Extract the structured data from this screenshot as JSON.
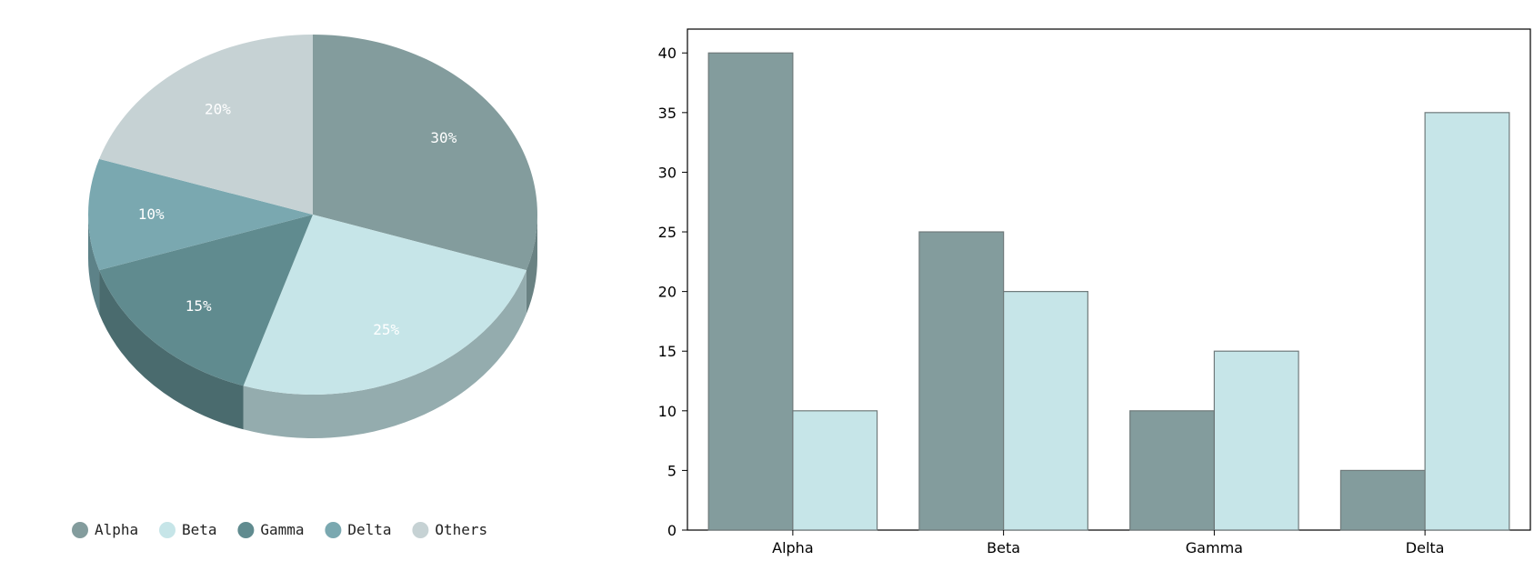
{
  "chart_data": [
    {
      "type": "pie",
      "title": "",
      "style": "3d",
      "legend_position": "bottom",
      "slices": [
        {
          "label": "Alpha",
          "value": 30,
          "value_label": "30%",
          "color": "#839c9d",
          "side_color": "#6a8283"
        },
        {
          "label": "Beta",
          "value": 25,
          "value_label": "25%",
          "color": "#c6e5e8",
          "side_color": "#94acae"
        },
        {
          "label": "Gamma",
          "value": 15,
          "value_label": "15%",
          "color": "#608b8f",
          "side_color": "#4a6b6e"
        },
        {
          "label": "Delta",
          "value": 10,
          "value_label": "10%",
          "color": "#7aa8b0",
          "side_color": "#5d8288"
        },
        {
          "label": "Others",
          "value": 20,
          "value_label": "20%",
          "color": "#c6d2d4",
          "side_color": "#9aa6a8"
        }
      ]
    },
    {
      "type": "bar",
      "title": "",
      "xlabel": "",
      "ylabel": "",
      "categories": [
        "Alpha",
        "Beta",
        "Gamma",
        "Delta"
      ],
      "series": [
        {
          "values": [
            40,
            25,
            10,
            5
          ],
          "color": "#839c9d"
        },
        {
          "values": [
            10,
            20,
            15,
            35
          ],
          "color": "#c6e5e8"
        }
      ],
      "ylim": [
        0,
        42
      ],
      "yticks": [
        0,
        5,
        10,
        15,
        20,
        25,
        30,
        35,
        40
      ],
      "grid": false
    }
  ]
}
